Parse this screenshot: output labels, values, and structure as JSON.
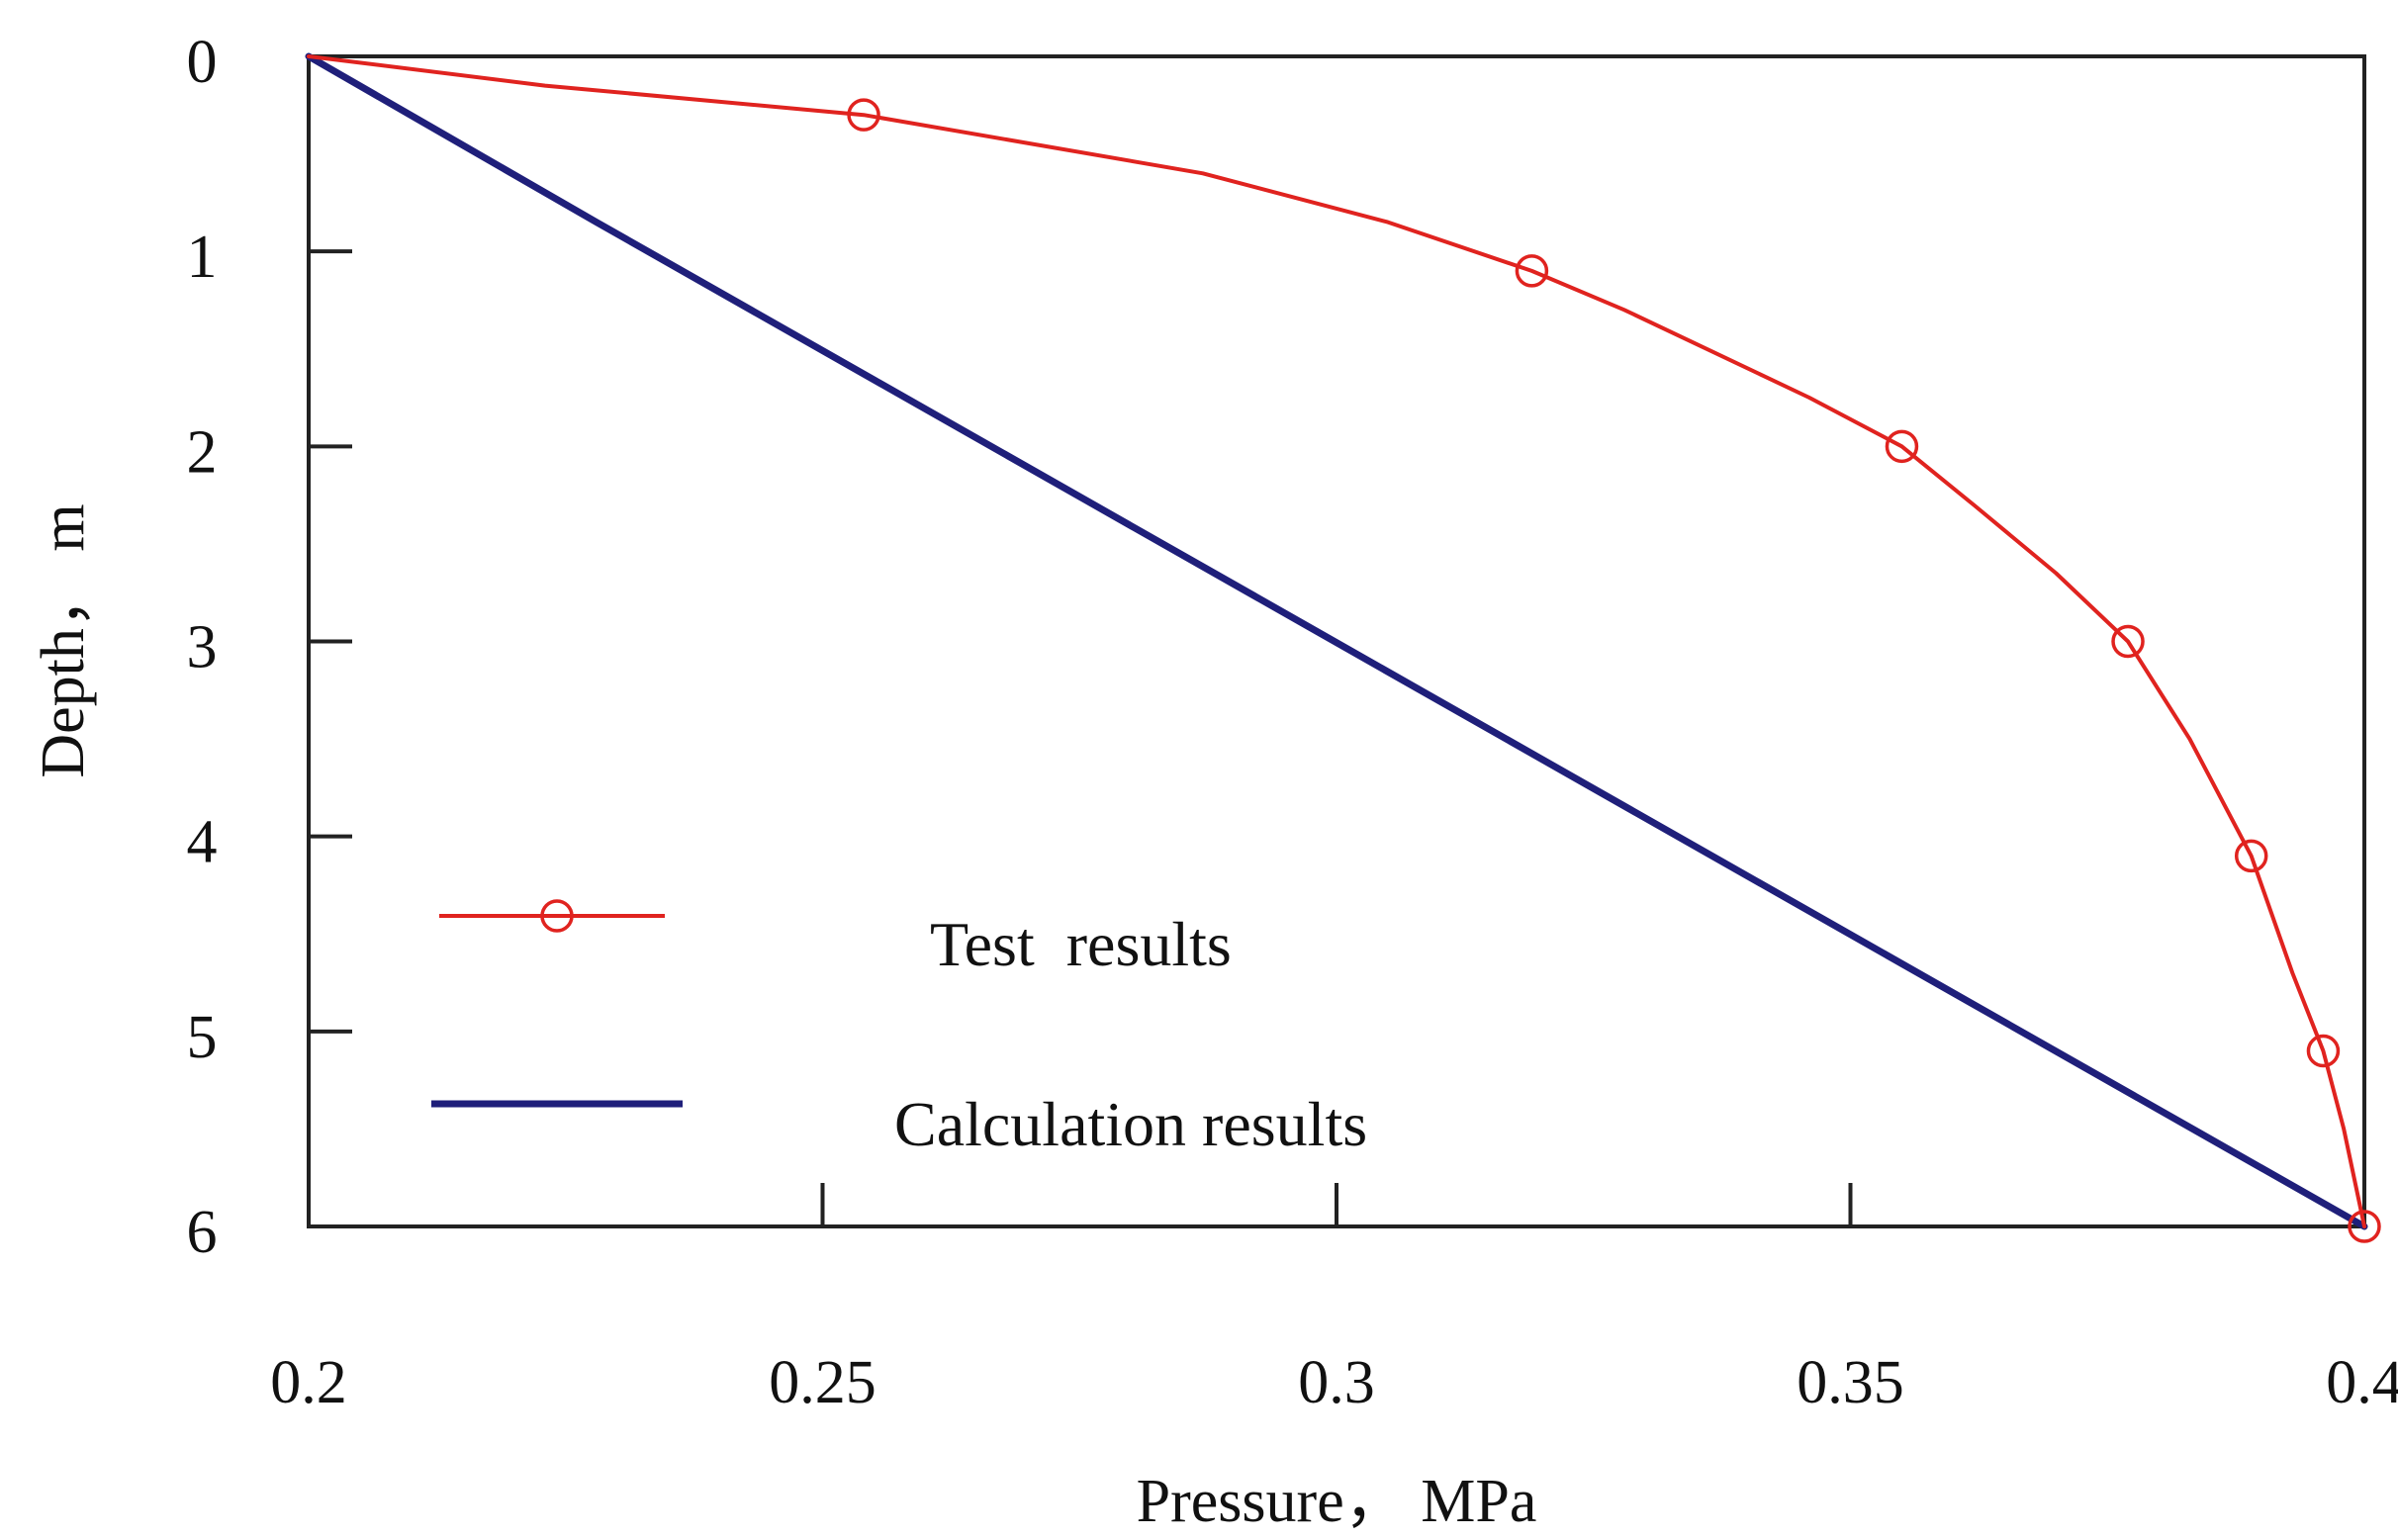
{
  "chart_data": {
    "type": "line",
    "title": "",
    "xlabel": "Pressure， MPa",
    "ylabel": "Depth， m",
    "xlim": [
      0.2,
      0.4
    ],
    "ylim": [
      0,
      6
    ],
    "y_inverted": true,
    "grid": false,
    "legend_position": "bottom-left",
    "x_ticks": [
      0.2,
      0.25,
      0.3,
      0.35,
      0.4
    ],
    "x_tick_labels": [
      "0.2",
      "0.25",
      "0.3",
      "0.35",
      "0.4"
    ],
    "y_ticks": [
      0,
      1,
      2,
      3,
      4,
      5,
      6
    ],
    "y_tick_labels": [
      "0",
      "1",
      "2",
      "3",
      "4",
      "5",
      "6"
    ],
    "series": [
      {
        "name": "Test  results",
        "color": "#e0231f",
        "marker": "circle-open",
        "line_points": [
          {
            "x": 0.2,
            "y": 0.0
          },
          {
            "x": 0.223,
            "y": 0.15
          },
          {
            "x": 0.254,
            "y": 0.3
          },
          {
            "x": 0.287,
            "y": 0.6
          },
          {
            "x": 0.305,
            "y": 0.85
          },
          {
            "x": 0.319,
            "y": 1.1
          },
          {
            "x": 0.328,
            "y": 1.3
          },
          {
            "x": 0.346,
            "y": 1.75
          },
          {
            "x": 0.355,
            "y": 2.0
          },
          {
            "x": 0.362,
            "y": 2.3
          },
          {
            "x": 0.37,
            "y": 2.65
          },
          {
            "x": 0.377,
            "y": 3.0
          },
          {
            "x": 0.383,
            "y": 3.5
          },
          {
            "x": 0.389,
            "y": 4.1
          },
          {
            "x": 0.393,
            "y": 4.7
          },
          {
            "x": 0.396,
            "y": 5.1
          },
          {
            "x": 0.398,
            "y": 5.5
          },
          {
            "x": 0.4,
            "y": 6.0
          }
        ],
        "marker_points": [
          {
            "x": 0.254,
            "y": 0.3
          },
          {
            "x": 0.319,
            "y": 1.1
          },
          {
            "x": 0.355,
            "y": 2.0
          },
          {
            "x": 0.377,
            "y": 3.0
          },
          {
            "x": 0.389,
            "y": 4.1
          },
          {
            "x": 0.396,
            "y": 5.1
          },
          {
            "x": 0.4,
            "y": 6.0
          }
        ]
      },
      {
        "name": "Calculation results",
        "color": "#1f1f7a",
        "marker": "none",
        "line_points": [
          {
            "x": 0.2,
            "y": 0.0
          },
          {
            "x": 0.228,
            "y": 0.85
          },
          {
            "x": 0.4,
            "y": 6.0
          }
        ]
      }
    ]
  }
}
